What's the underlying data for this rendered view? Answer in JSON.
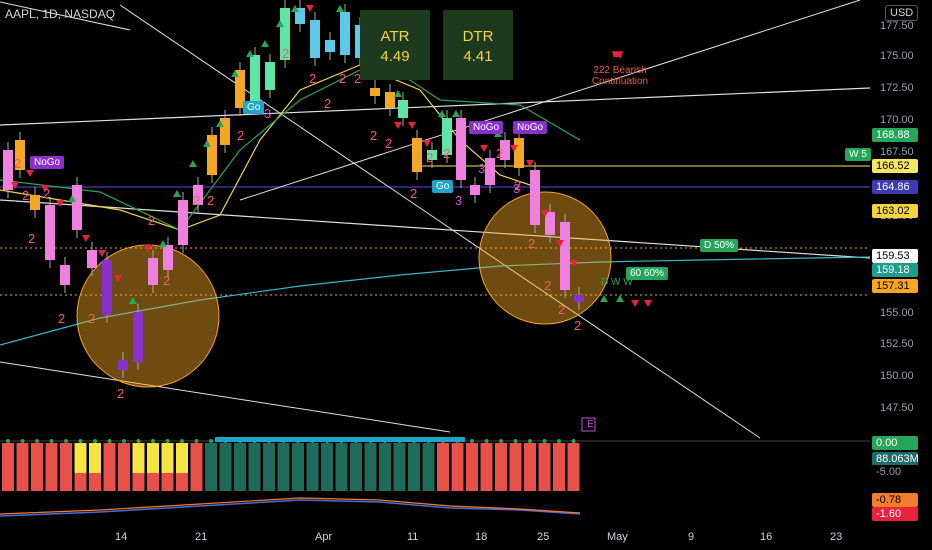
{
  "symbol": "AAPL, 1D, NASDAQ",
  "currency": "USD",
  "atr": {
    "label": "ATR",
    "value": "4.49"
  },
  "dtr": {
    "label": "DTR",
    "value": "4.41"
  },
  "annotation": {
    "line1": "222 Bearish",
    "line2": "Continuation"
  },
  "tags": {
    "nogo1": "NoGo",
    "nogo2": "NoGo",
    "nogo3": "NoGo",
    "go1": "Go",
    "go2": "Go",
    "d50": "D 50%",
    "p6060": "60 60%",
    "w5": "W 5",
    "e": "E",
    "dww": "D W W"
  },
  "yaxis": [
    "177.50",
    "175.00",
    "172.50",
    "170.00",
    "167.50",
    "162.50",
    "155.00",
    "152.50",
    "150.00",
    "147.50"
  ],
  "price_tags": [
    {
      "value": "168.88",
      "bg": "#26a65b",
      "fg": "#ffffff"
    },
    {
      "value": "166.52",
      "bg": "#f5e663",
      "fg": "#000000"
    },
    {
      "value": "164.86",
      "bg": "#3b3bb5",
      "fg": "#ffffff"
    },
    {
      "value": "163.02",
      "bg": "#f5d442",
      "fg": "#000000"
    },
    {
      "value": "159.53",
      "bg": "#ffffff",
      "fg": "#000000"
    },
    {
      "value": "159.18",
      "bg": "#1f9c8c",
      "fg": "#ffffff"
    },
    {
      "value": "157.31",
      "bg": "#f5a623",
      "fg": "#000000"
    },
    {
      "value": "0.00",
      "bg": "#26a65b",
      "fg": "#ffffff"
    },
    {
      "value": "88.063M",
      "bg": "#1f6b6b",
      "fg": "#ffffff"
    },
    {
      "value": "-5.00",
      "bg": "#000000",
      "fg": "#9aa0aa"
    },
    {
      "value": "-0.78",
      "bg": "#f57c2a",
      "fg": "#000000"
    },
    {
      "value": "-1.60",
      "bg": "#e8213f",
      "fg": "#ffffff"
    }
  ],
  "xaxis": [
    "14",
    "21",
    "Apr",
    "11",
    "18",
    "25",
    "May",
    "9",
    "16",
    "23"
  ],
  "colors": {
    "up": "#5ec9e6",
    "down": "#f080e0",
    "bull": "#26a65b",
    "bear": "#e8213f",
    "circle": "#f5a623"
  }
}
